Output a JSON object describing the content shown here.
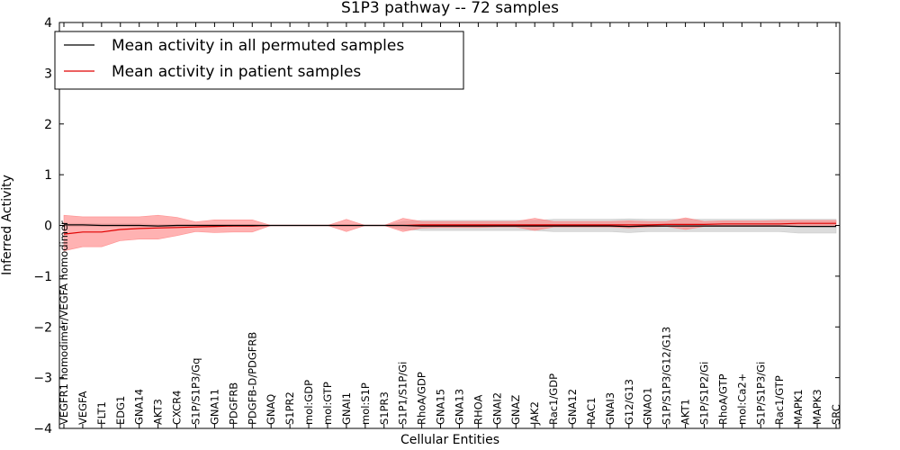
{
  "chart_data": {
    "type": "line",
    "title": "S1P3 pathway -- 72 samples",
    "xlabel": "Cellular Entities",
    "ylabel": "Inferred Activity",
    "ylim": [
      -4,
      4
    ],
    "yticks": [
      -4,
      -3,
      -2,
      -1,
      0,
      1,
      2,
      3,
      4
    ],
    "legend_position": "top-left",
    "colors": {
      "permuted_line": "#000000",
      "permuted_band": "#bfbfbf",
      "patient_line": "#e00000",
      "patient_band": "#ff7f7f"
    },
    "categories": [
      "VEGFR1 homodimer/VEGFA homodimer",
      "VEGFA",
      "FLT1",
      "EDG1",
      "GNA14",
      "AKT3",
      "CXCR4",
      "S1P/S1P3/Gq",
      "GNA11",
      "PDGFRB",
      "PDGFB-D/PDGFRB",
      "GNAQ",
      "S1PR2",
      "mol:GDP",
      "mol:GTP",
      "GNAI1",
      "mol:S1P",
      "S1PR3",
      "S1P1/S1P/Gi",
      "RhoA/GDP",
      "GNA15",
      "GNA13",
      "RHOA",
      "GNAI2",
      "GNAZ",
      "JAK2",
      "Rac1/GDP",
      "GNA12",
      "RAC1",
      "GNAI3",
      "G12/G13",
      "GNAO1",
      "S1P/S1P3/G12/G13",
      "AKT1",
      "S1P/S1P2/Gi",
      "RhoA/GTP",
      "mol:Ca2+",
      "S1P/S1P3/Gi",
      "Rac1/GTP",
      "MAPK1",
      "MAPK3",
      "SRC"
    ],
    "series": [
      {
        "name": "Mean activity in all permuted samples",
        "values": [
          0.01,
          0.01,
          0.0,
          0.0,
          0.0,
          -0.01,
          0.0,
          0.0,
          0.0,
          0.0,
          0.0,
          0.0,
          0.0,
          0.0,
          0.0,
          0.0,
          0.0,
          0.0,
          0.0,
          -0.01,
          -0.01,
          -0.01,
          -0.01,
          -0.01,
          -0.01,
          -0.01,
          -0.01,
          -0.01,
          -0.01,
          -0.01,
          -0.02,
          -0.01,
          -0.01,
          -0.01,
          -0.01,
          -0.01,
          -0.01,
          -0.01,
          -0.01,
          -0.02,
          -0.02,
          -0.02
        ],
        "lower": [
          -0.02,
          -0.02,
          -0.02,
          -0.02,
          -0.02,
          -0.03,
          -0.03,
          -0.03,
          -0.02,
          -0.02,
          -0.02,
          0.0,
          0.0,
          0.0,
          0.0,
          0.0,
          0.0,
          0.0,
          -0.08,
          -0.1,
          -0.1,
          -0.1,
          -0.1,
          -0.1,
          -0.1,
          -0.1,
          -0.12,
          -0.12,
          -0.12,
          -0.12,
          -0.14,
          -0.12,
          -0.12,
          -0.12,
          -0.12,
          -0.12,
          -0.12,
          -0.12,
          -0.12,
          -0.15,
          -0.15,
          -0.15
        ],
        "upper": [
          0.04,
          0.04,
          0.03,
          0.03,
          0.03,
          0.02,
          0.02,
          0.02,
          0.02,
          0.02,
          0.02,
          0.0,
          0.0,
          0.0,
          0.0,
          0.0,
          0.0,
          0.0,
          0.08,
          0.1,
          0.1,
          0.1,
          0.1,
          0.1,
          0.1,
          0.1,
          0.12,
          0.12,
          0.12,
          0.12,
          0.13,
          0.12,
          0.12,
          0.12,
          0.12,
          0.12,
          0.12,
          0.12,
          0.12,
          0.12,
          0.12,
          0.12
        ]
      },
      {
        "name": "Mean activity in patient samples",
        "values": [
          -0.17,
          -0.13,
          -0.13,
          -0.08,
          -0.06,
          -0.05,
          -0.04,
          -0.03,
          -0.02,
          -0.01,
          -0.01,
          0.0,
          0.0,
          0.0,
          0.0,
          0.0,
          0.0,
          0.0,
          0.0,
          0.01,
          0.01,
          0.01,
          0.01,
          0.01,
          0.01,
          0.01,
          0.01,
          0.01,
          0.01,
          0.01,
          0.01,
          0.01,
          0.02,
          0.02,
          0.02,
          0.03,
          0.03,
          0.03,
          0.03,
          0.04,
          0.04,
          0.04
        ],
        "lower": [
          -0.5,
          -0.42,
          -0.42,
          -0.3,
          -0.27,
          -0.27,
          -0.2,
          -0.12,
          -0.14,
          -0.13,
          -0.13,
          0.0,
          0.0,
          0.0,
          0.0,
          -0.12,
          0.0,
          0.0,
          -0.12,
          -0.05,
          -0.04,
          -0.04,
          -0.04,
          -0.03,
          -0.03,
          -0.1,
          -0.03,
          -0.03,
          -0.03,
          -0.03,
          -0.05,
          -0.03,
          -0.02,
          -0.08,
          -0.02,
          -0.02,
          -0.02,
          -0.02,
          -0.02,
          -0.02,
          -0.02,
          -0.02
        ],
        "upper": [
          0.2,
          0.17,
          0.17,
          0.17,
          0.17,
          0.2,
          0.16,
          0.07,
          0.11,
          0.11,
          0.11,
          0.0,
          0.0,
          0.0,
          0.0,
          0.12,
          0.0,
          0.0,
          0.14,
          0.08,
          0.08,
          0.08,
          0.08,
          0.08,
          0.08,
          0.14,
          0.08,
          0.08,
          0.08,
          0.08,
          0.09,
          0.08,
          0.08,
          0.15,
          0.08,
          0.09,
          0.09,
          0.09,
          0.1,
          0.1,
          0.1,
          0.1
        ]
      }
    ]
  }
}
